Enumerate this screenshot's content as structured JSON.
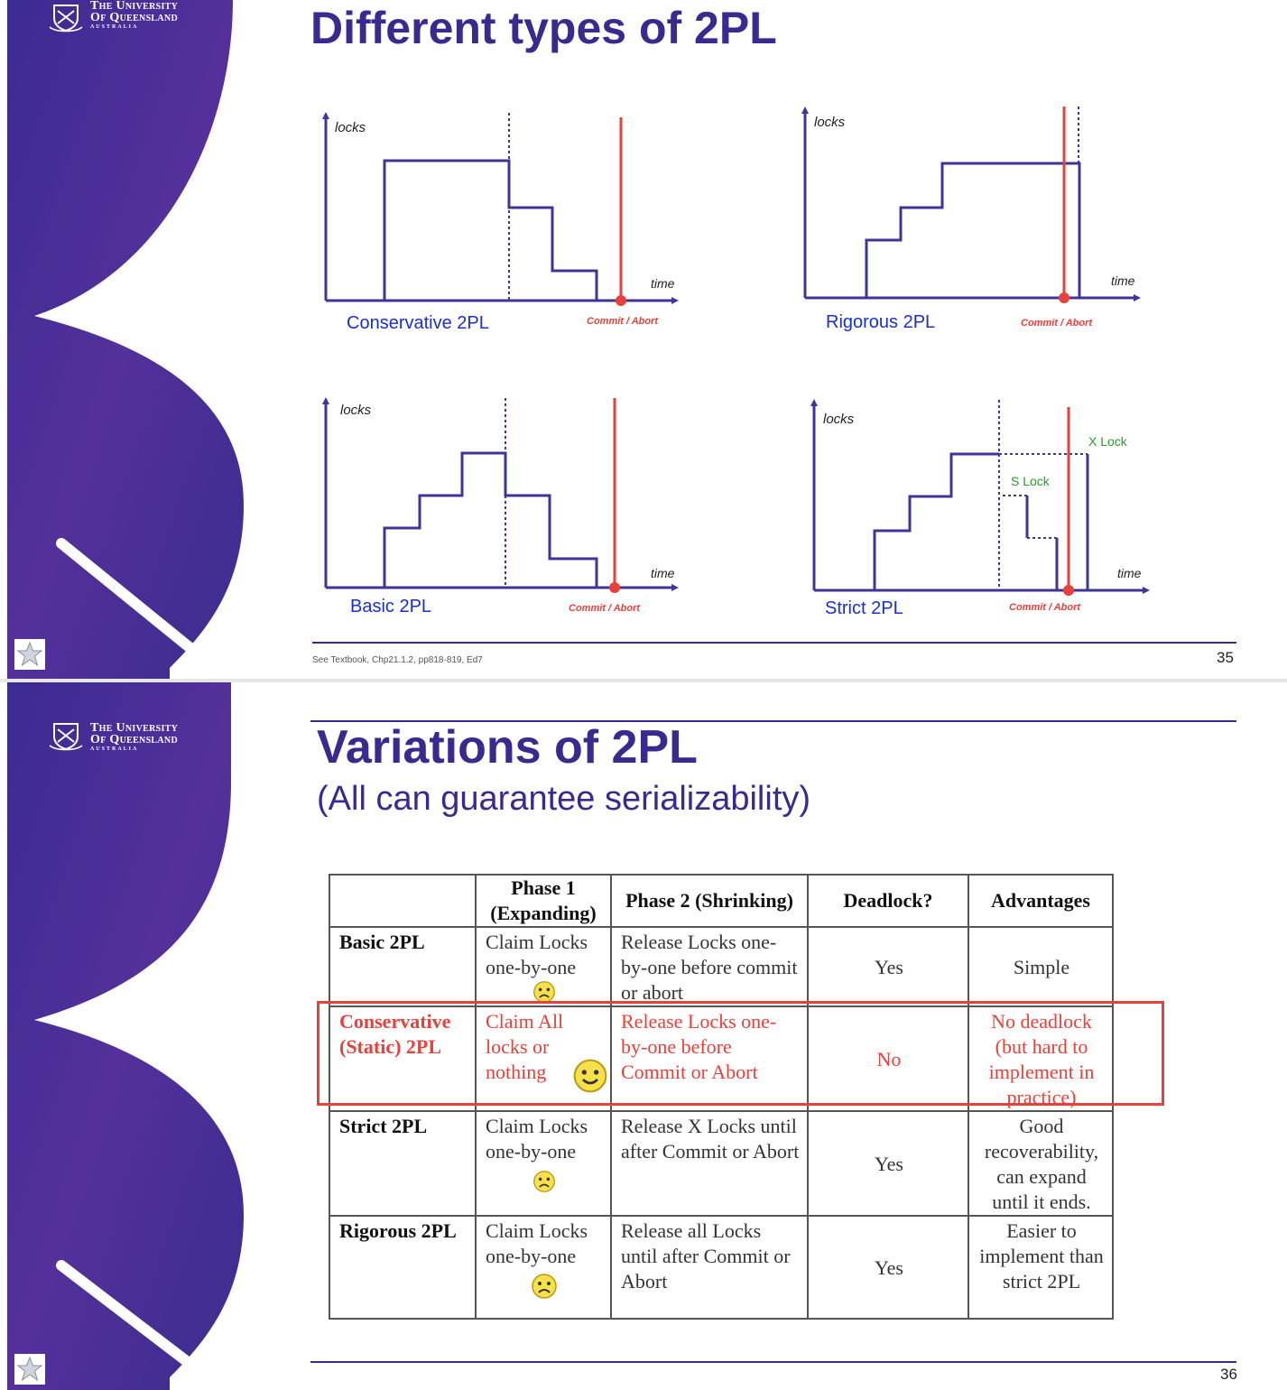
{
  "logo": {
    "line1": "The University",
    "line2": "Of Queensland",
    "line3": "AUSTRALIA"
  },
  "slide35": {
    "title": "Different types of 2PL",
    "axis_y": "locks",
    "axis_x": "time",
    "commit_label": "Commit / Abort",
    "charts": {
      "conservative": "Conservative 2PL",
      "rigorous": "Rigorous 2PL",
      "basic": "Basic 2PL",
      "strict": "Strict 2PL"
    },
    "x_lock": "X Lock",
    "s_lock": "S Lock",
    "footnote": "See Textbook, Chp21.1.2, pp818-819, Ed7",
    "page": "35"
  },
  "slide36": {
    "title": "Variations of 2PL",
    "subtitle": "(All can guarantee serializability)",
    "table": {
      "headers": [
        "",
        "Phase 1 (Expanding)",
        "Phase 2 (Shrinking)",
        "Deadlock?",
        "Advantages"
      ],
      "rows": [
        {
          "name": "Basic 2PL",
          "phase1": "Claim Locks one-by-one",
          "phase2": "Release Locks one-by-one before commit or abort",
          "deadlock": "Yes",
          "advantages": "Simple",
          "face": "sad"
        },
        {
          "name": "Conservative (Static) 2PL",
          "phase1": "Claim All locks or nothing",
          "phase2": "Release Locks one-by-one before Commit or Abort",
          "deadlock": "No",
          "advantages": "No deadlock (but hard to implement in practice)",
          "face": "happy"
        },
        {
          "name": "Strict 2PL",
          "phase1": "Claim Locks one-by-one",
          "phase2": "Release X Locks until after Commit or Abort",
          "deadlock": "Yes",
          "advantages": "Good recoverability, can expand until it ends.",
          "face": "sad"
        },
        {
          "name": "Rigorous 2PL",
          "phase1": "Claim Locks one-by-one",
          "phase2": "Release all Locks until after Commit or Abort",
          "deadlock": "Yes",
          "advantages": "Easier to implement than strict 2PL",
          "face": "sad"
        }
      ]
    },
    "page": "36"
  },
  "colors": {
    "title": "#3a2a8f",
    "line": "#3f3596",
    "commit": "#e8413c",
    "label_blue": "#1a2fd0",
    "lock_green": "#2a9a2a",
    "highlight": "#e8413c"
  }
}
